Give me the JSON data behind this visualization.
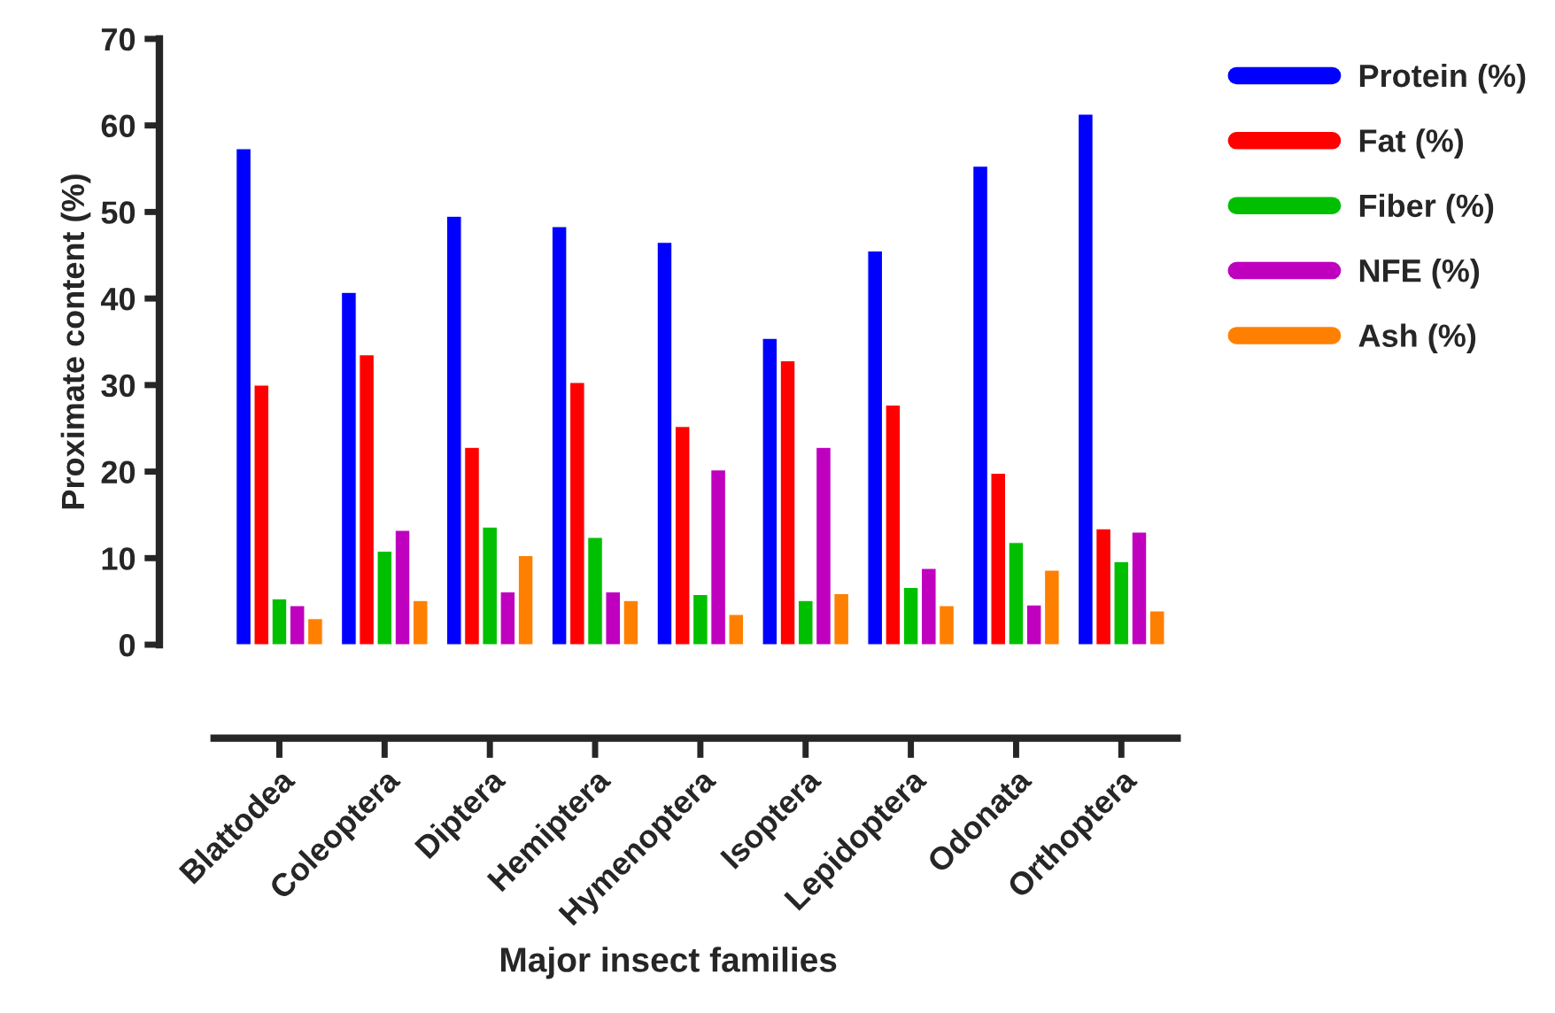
{
  "chart_data": {
    "type": "bar",
    "xlabel": "Major insect families",
    "ylabel": "Proximate content (%)",
    "categories": [
      "Blattodea",
      "Coleoptera",
      "Diptera",
      "Hemiptera",
      "Hymenoptera",
      "Isoptera",
      "Lepidoptera",
      "Odonata",
      "Orthoptera"
    ],
    "series": [
      {
        "name": "Protein (%)",
        "color": "#0000ff",
        "values": [
          57.3,
          40.7,
          49.5,
          48.3,
          46.5,
          35.4,
          45.5,
          55.3,
          61.3
        ]
      },
      {
        "name": "Fat (%)",
        "color": "#ff0000",
        "values": [
          30.0,
          33.5,
          22.8,
          30.3,
          25.2,
          32.8,
          27.7,
          19.8,
          13.4
        ]
      },
      {
        "name": "Fiber (%)",
        "color": "#00bf00",
        "values": [
          5.3,
          10.8,
          13.6,
          12.4,
          5.8,
          5.1,
          6.6,
          11.8,
          9.6
        ]
      },
      {
        "name": "NFE (%)",
        "color": "#bf00bf",
        "values": [
          4.5,
          13.2,
          6.1,
          6.1,
          20.2,
          22.8,
          8.8,
          4.6,
          13.0
        ]
      },
      {
        "name": "Ash (%)",
        "color": "#ff8000",
        "values": [
          3.0,
          5.1,
          10.3,
          5.1,
          3.5,
          5.9,
          4.5,
          8.6,
          3.9
        ]
      }
    ],
    "ylim": [
      0,
      70
    ],
    "yticks": [
      0,
      10,
      20,
      30,
      40,
      50,
      60,
      70
    ],
    "grid": false,
    "legend": "right"
  }
}
